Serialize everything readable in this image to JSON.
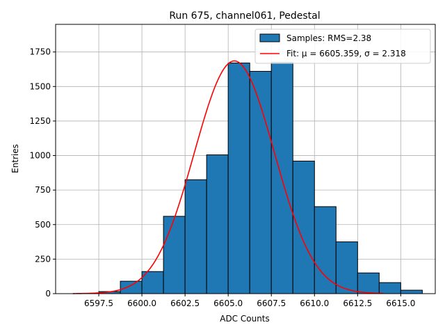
{
  "chart_data": {
    "type": "bar",
    "title": "Run 675, channel061, Pedestal",
    "xlabel": "ADC Counts",
    "ylabel": "Entries",
    "xlim": [
      6595.0,
      6617.0
    ],
    "ylim": [
      0,
      1950
    ],
    "xticks": [
      6597.5,
      6600.0,
      6602.5,
      6605.0,
      6607.5,
      6610.0,
      6612.5,
      6615.0
    ],
    "xtick_labels": [
      "6597.5",
      "6600.0",
      "6602.5",
      "6605.0",
      "6607.5",
      "6610.0",
      "6612.5",
      "6615.0"
    ],
    "yticks": [
      0,
      250,
      500,
      750,
      1000,
      1250,
      1500,
      1750
    ],
    "ytick_labels": [
      "0",
      "250",
      "500",
      "750",
      "1000",
      "1250",
      "1500",
      "1750"
    ],
    "grid": true,
    "legend_position": "top-right",
    "histogram": {
      "name": "Samples: RMS=2.38",
      "color": "#1f77b4",
      "edge_color": "#000000",
      "bin_width": 1.25,
      "bins": [
        {
          "x0": 6597.5,
          "value": 15
        },
        {
          "x0": 6598.75,
          "value": 90
        },
        {
          "x0": 6600.0,
          "value": 160
        },
        {
          "x0": 6601.25,
          "value": 560
        },
        {
          "x0": 6602.5,
          "value": 825
        },
        {
          "x0": 6603.75,
          "value": 1005
        },
        {
          "x0": 6605.0,
          "value": 1670
        },
        {
          "x0": 6606.25,
          "value": 1610
        },
        {
          "x0": 6607.5,
          "value": 1675
        },
        {
          "x0": 6608.75,
          "value": 960
        },
        {
          "x0": 6610.0,
          "value": 630
        },
        {
          "x0": 6611.25,
          "value": 375
        },
        {
          "x0": 6612.5,
          "value": 150
        },
        {
          "x0": 6613.75,
          "value": 80
        },
        {
          "x0": 6615.0,
          "value": 25
        }
      ]
    },
    "fit": {
      "name": "Fit: μ = 6605.359, σ = 2.318",
      "color": "#ff0000",
      "mu": 6605.359,
      "sigma": 2.318,
      "amplitude": 1685,
      "x_range": [
        6596.0,
        6614.0
      ]
    }
  }
}
